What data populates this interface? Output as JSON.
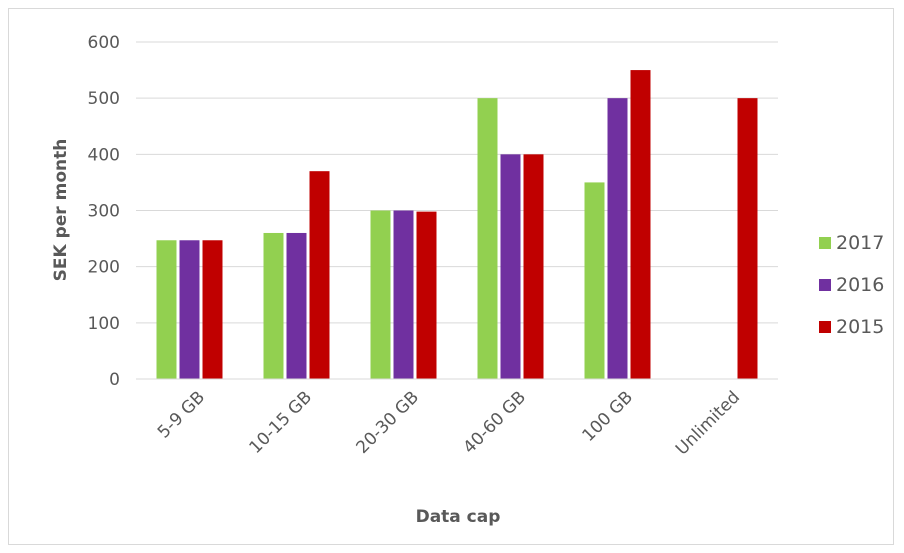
{
  "chart_data": {
    "type": "bar",
    "title": "",
    "xlabel": "Data cap",
    "ylabel": "SEK per month",
    "categories": [
      "5-9 GB",
      "10-15 GB",
      "20-30 GB",
      "40-60 GB",
      "100 GB",
      "Unlimited"
    ],
    "series": [
      {
        "name": "2017",
        "color": "#92d050",
        "values": [
          247,
          260,
          300,
          500,
          350,
          null
        ]
      },
      {
        "name": "2016",
        "color": "#7030a0",
        "values": [
          247,
          260,
          300,
          400,
          500,
          null
        ]
      },
      {
        "name": "2015",
        "color": "#c00000",
        "values": [
          247,
          370,
          298,
          400,
          550,
          500
        ]
      }
    ],
    "ylim": [
      0,
      600
    ],
    "yticks": [
      0,
      100,
      200,
      300,
      400,
      500,
      600
    ],
    "grid": true,
    "legend": "right"
  }
}
